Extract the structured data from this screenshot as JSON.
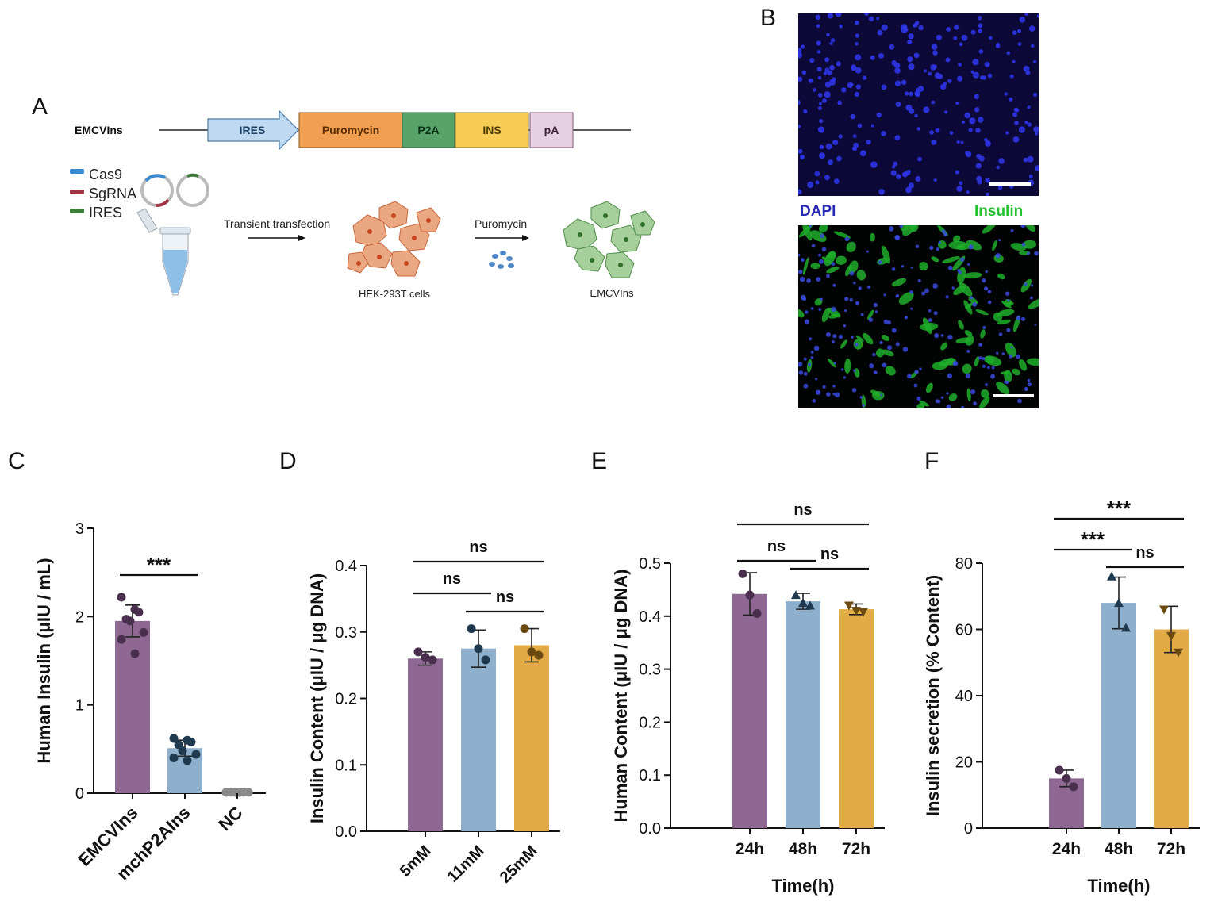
{
  "panels": {
    "A": "A",
    "B": "B",
    "C": "C",
    "D": "D",
    "E": "E",
    "F": "F"
  },
  "construct": {
    "name": "EMCVIns",
    "segments": [
      "IRES",
      "Puromycin",
      "P2A",
      "INS",
      "pA"
    ],
    "colors": {
      "ires": "#bfd9f0",
      "puro": "#f0a050",
      "p2a": "#59a36b",
      "ins": "#f6cc55",
      "pa": "#e7cfe2"
    }
  },
  "legend": {
    "cas9": "Cas9",
    "sgrna": "SgRNA",
    "ires": "IRES",
    "colors": {
      "cas9": "#3a8ad0",
      "sgrna": "#a23545",
      "ires": "#3f7d3a"
    }
  },
  "workflow": {
    "step1": "Transient transfection",
    "step2": "Puromycin",
    "cells1": "HEK-293T cells",
    "cells2": "EMCVIns"
  },
  "micro": {
    "dapi": "DAPI",
    "insulin": "Insulin",
    "dapi_color": "#2a2ab8",
    "insulin_color": "#22c22e"
  },
  "chart_data": [
    {
      "panel": "C",
      "type": "bar",
      "categories": [
        "EMCVIns",
        "mchP2AIns",
        "NC"
      ],
      "values": [
        1.95,
        0.51,
        0.01
      ],
      "errors": [
        0.18,
        0.09,
        0.0
      ],
      "points": [
        [
          2.22,
          2.08,
          2.05,
          1.97,
          1.95,
          1.82,
          1.74,
          1.58
        ],
        [
          0.62,
          0.6,
          0.58,
          0.55,
          0.48,
          0.44,
          0.4,
          0.37
        ],
        [
          0.01,
          0.01,
          0.01,
          0.01,
          0.01,
          0.01,
          0.01,
          0.01
        ]
      ],
      "colors": [
        "#8e6893",
        "#8fb0cc",
        "#9c9c9c"
      ],
      "ylabel": "Human Insulin (μIU / mL)",
      "ylim": [
        0,
        3
      ],
      "yticks": [
        "0",
        "1",
        "2",
        "3"
      ],
      "sig": [
        {
          "a": 0,
          "b": 1,
          "label": "***"
        }
      ]
    },
    {
      "panel": "D",
      "type": "bar",
      "categories": [
        "5mM",
        "11mM",
        "25mM"
      ],
      "values": [
        0.26,
        0.275,
        0.28
      ],
      "errors": [
        0.01,
        0.028,
        0.025
      ],
      "points": [
        [
          0.27,
          0.262,
          0.258
        ],
        [
          0.305,
          0.275,
          0.258
        ],
        [
          0.305,
          0.27,
          0.265
        ]
      ],
      "colors": [
        "#8e6893",
        "#8fb0cc",
        "#e3ab45"
      ],
      "ylabel": "Insulin Content (μIU / μg DNA)",
      "ylim": [
        0,
        0.4
      ],
      "yticks": [
        "0.0",
        "0.1",
        "0.2",
        "0.3",
        "0.4"
      ],
      "sig": [
        {
          "a": 0,
          "b": 1,
          "label": "ns"
        },
        {
          "a": 1,
          "b": 2,
          "label": "ns"
        },
        {
          "a": 0,
          "b": 2,
          "label": "ns"
        }
      ]
    },
    {
      "panel": "E",
      "type": "bar",
      "categories": [
        "24h",
        "48h",
        "72h"
      ],
      "values": [
        0.442,
        0.428,
        0.413
      ],
      "errors": [
        0.04,
        0.015,
        0.01
      ],
      "points": [
        [
          0.48,
          0.44,
          0.405
        ],
        [
          0.44,
          0.425,
          0.42
        ],
        [
          0.42,
          0.41,
          0.408
        ]
      ],
      "colors": [
        "#8e6893",
        "#8fb0cc",
        "#e3ab45"
      ],
      "ylabel": "Human Content (μIU / μg DNA)",
      "xlabel": "Time(h)",
      "ylim": [
        0,
        0.5
      ],
      "yticks": [
        "0.0",
        "0.1",
        "0.2",
        "0.3",
        "0.4",
        "0.5"
      ],
      "sig": [
        {
          "a": 0,
          "b": 1,
          "label": "ns"
        },
        {
          "a": 1,
          "b": 2,
          "label": "ns"
        },
        {
          "a": 0,
          "b": 2,
          "label": "ns"
        }
      ]
    },
    {
      "panel": "F",
      "type": "bar",
      "categories": [
        "24h",
        "48h",
        "72h"
      ],
      "values": [
        15,
        68,
        60
      ],
      "errors": [
        2.5,
        7.8,
        7
      ],
      "points": [
        [
          17.5,
          15,
          12.5
        ],
        [
          76,
          68,
          60.5
        ],
        [
          66,
          58,
          53
        ]
      ],
      "colors": [
        "#8e6893",
        "#8fb0cc",
        "#e3ab45"
      ],
      "ylabel": "Insulin secretion (% Content)",
      "xlabel": "Time(h)",
      "ylim": [
        0,
        80
      ],
      "yticks": [
        "0",
        "20",
        "40",
        "60",
        "80"
      ],
      "sig": [
        {
          "a": 0,
          "b": 1,
          "label": "***"
        },
        {
          "a": 1,
          "b": 2,
          "label": "ns"
        },
        {
          "a": 0,
          "b": 2,
          "label": "***"
        }
      ]
    }
  ]
}
